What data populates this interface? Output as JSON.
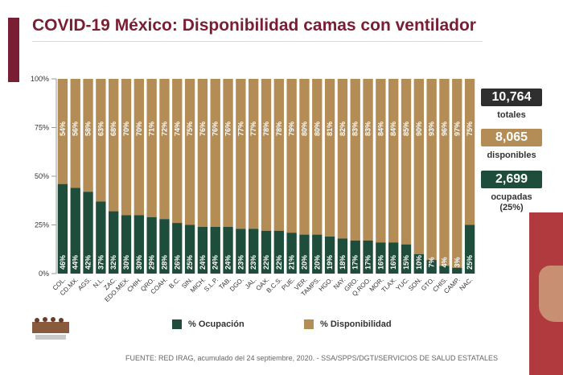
{
  "title": "COVID-19 México: Disponibilidad camas con ventilador",
  "stats": {
    "total_value": "10,764",
    "total_label": "totales",
    "available_value": "8,065",
    "available_label": "disponibles",
    "occupied_value": "2,699",
    "occupied_label": "ocupadas",
    "occupied_pct": "(25%)"
  },
  "legend": {
    "occupation": "% Ocupación",
    "availability": "% Disponibilidad"
  },
  "footer": "FUENTE: RED IRAG, acumulado del 24 septiembre, 2020. - SSA/SPPS/DGTI/SERVICIOS DE SALUD ESTATALES",
  "colors": {
    "occupation": "#1e4d3b",
    "availability": "#b48c55",
    "brand": "#7a1e33",
    "total_box": "#2f2f2f"
  },
  "chart_data": {
    "type": "bar",
    "stacked": true,
    "categories": [
      "COL.",
      "CD.MX.",
      "AGS.",
      "N.L.",
      "ZAC.",
      "EDO.MEX.",
      "CHIH.",
      "QRO.",
      "COAH.",
      "B.C.",
      "SIN.",
      "MICH.",
      "S.L.P.",
      "TAB.",
      "DGO.",
      "JAL.",
      "OAX.",
      "B.C.S.",
      "PUE.",
      "VER.",
      "TAMPS.",
      "HGO.",
      "NAY.",
      "GRO.",
      "Q.ROO.",
      "MOR.",
      "TLAX.",
      "YUC.",
      "SON.",
      "GTO.",
      "CHIS.",
      "CAMP.",
      "NAC."
    ],
    "series": [
      {
        "name": "% Ocupación",
        "values": [
          46,
          44,
          42,
          37,
          32,
          30,
          30,
          29,
          28,
          26,
          25,
          24,
          24,
          24,
          23,
          23,
          22,
          22,
          21,
          20,
          20,
          19,
          18,
          17,
          17,
          16,
          16,
          15,
          10,
          7,
          4,
          3,
          25
        ]
      },
      {
        "name": "% Disponibilidad",
        "values": [
          54,
          56,
          58,
          63,
          68,
          70,
          70,
          71,
          72,
          74,
          75,
          76,
          76,
          76,
          77,
          77,
          78,
          78,
          79,
          80,
          80,
          81,
          82,
          83,
          83,
          84,
          84,
          85,
          90,
          93,
          96,
          97,
          75
        ]
      }
    ],
    "ytick_labels": [
      "0%",
      "25%",
      "50%",
      "75%",
      "100%"
    ],
    "ylim": [
      0,
      100
    ]
  }
}
